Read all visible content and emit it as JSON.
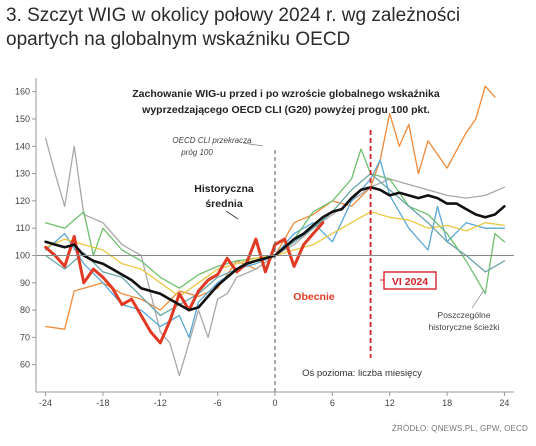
{
  "heading": "3. Szczyt WIG w okolicy połowy 2024 r. wg zależności opartych na globalnym wskaźniku OECD",
  "source": "ŹRÓDŁO: QNEWS.PL, GPW, OECD",
  "chart_data": {
    "type": "line",
    "title": "Zachowanie WIG-u przed i po wzroście globalnego wskaźnika wyprzedzającego OECD CLI (G20) powyżej progu 100 pkt.",
    "xlabel": "Oś pozioma: liczba miesięcy",
    "ylabel": "",
    "xlim": [
      -25,
      25
    ],
    "ylim": [
      50,
      165
    ],
    "xticks": [
      -24,
      -18,
      -12,
      -6,
      0,
      6,
      12,
      18,
      24
    ],
    "yticks": [
      60,
      70,
      80,
      90,
      100,
      110,
      120,
      130,
      140,
      150,
      160
    ],
    "grid": false,
    "annotations": {
      "threshold_x": 0,
      "threshold_label": [
        "OECD CLI przekracza",
        "próg 100"
      ],
      "peak_x": 10,
      "peak_label": "VI 2024",
      "hist_label": [
        "Historyczna",
        "średnia"
      ],
      "current_label": "Obecnie",
      "paths_label": [
        "Poszczególne",
        "historyczne ścieżki"
      ]
    },
    "colors": {
      "average": "#111111",
      "current": "#e03a24",
      "peak": "#d4232b",
      "threshold": "#555555",
      "axis": "#999999",
      "reference": "#888888"
    },
    "series": [
      {
        "color": "#f08a3a",
        "values": [
          [
            -24,
            74
          ],
          [
            -22,
            73
          ],
          [
            -21,
            87
          ],
          [
            -20,
            88
          ],
          [
            -18,
            90
          ],
          [
            -16,
            86
          ],
          [
            -14,
            84
          ],
          [
            -12,
            80
          ],
          [
            -10,
            87
          ],
          [
            -8,
            85
          ],
          [
            -6,
            88
          ],
          [
            -4,
            98
          ],
          [
            -2,
            95
          ],
          [
            0,
            100
          ],
          [
            2,
            112
          ],
          [
            4,
            115
          ],
          [
            6,
            120
          ],
          [
            8,
            118
          ],
          [
            10,
            125
          ],
          [
            11,
            135
          ],
          [
            12,
            152
          ],
          [
            13,
            140
          ],
          [
            14,
            148
          ],
          [
            15,
            130
          ],
          [
            16,
            142
          ],
          [
            18,
            132
          ],
          [
            20,
            145
          ],
          [
            21,
            150
          ],
          [
            22,
            162
          ],
          [
            23,
            158
          ]
        ]
      },
      {
        "color": "#a8a8a8",
        "values": [
          [
            -24,
            143
          ],
          [
            -23,
            130
          ],
          [
            -22,
            118
          ],
          [
            -21,
            140
          ],
          [
            -20,
            115
          ],
          [
            -18,
            112
          ],
          [
            -16,
            104
          ],
          [
            -14,
            100
          ],
          [
            -12,
            72
          ],
          [
            -11,
            68
          ],
          [
            -10,
            56
          ],
          [
            -8,
            80
          ],
          [
            -7,
            70
          ],
          [
            -6,
            84
          ],
          [
            -5,
            86
          ],
          [
            -4,
            92
          ],
          [
            -2,
            95
          ],
          [
            0,
            100
          ],
          [
            2,
            104
          ],
          [
            4,
            110
          ],
          [
            6,
            115
          ],
          [
            8,
            120
          ],
          [
            10,
            125
          ],
          [
            12,
            128
          ],
          [
            14,
            126
          ],
          [
            16,
            124
          ],
          [
            18,
            122
          ],
          [
            20,
            121
          ],
          [
            22,
            122
          ],
          [
            24,
            125
          ]
        ]
      },
      {
        "color": "#5aa8d8",
        "values": [
          [
            -24,
            102
          ],
          [
            -22,
            108
          ],
          [
            -20,
            97
          ],
          [
            -18,
            90
          ],
          [
            -16,
            82
          ],
          [
            -14,
            80
          ],
          [
            -12,
            74
          ],
          [
            -10,
            78
          ],
          [
            -9,
            70
          ],
          [
            -8,
            83
          ],
          [
            -6,
            90
          ],
          [
            -4,
            95
          ],
          [
            -2,
            97
          ],
          [
            0,
            100
          ],
          [
            2,
            108
          ],
          [
            4,
            112
          ],
          [
            6,
            105
          ],
          [
            8,
            120
          ],
          [
            10,
            128
          ],
          [
            11,
            135
          ],
          [
            12,
            122
          ],
          [
            14,
            110
          ],
          [
            16,
            102
          ],
          [
            17,
            118
          ],
          [
            18,
            105
          ],
          [
            20,
            112
          ],
          [
            22,
            110
          ],
          [
            24,
            110
          ]
        ]
      },
      {
        "color": "#6fbf6f",
        "values": [
          [
            -24,
            112
          ],
          [
            -22,
            110
          ],
          [
            -20,
            116
          ],
          [
            -19,
            100
          ],
          [
            -18,
            110
          ],
          [
            -16,
            102
          ],
          [
            -14,
            98
          ],
          [
            -12,
            92
          ],
          [
            -10,
            88
          ],
          [
            -8,
            93
          ],
          [
            -6,
            96
          ],
          [
            -4,
            98
          ],
          [
            -2,
            99
          ],
          [
            0,
            100
          ],
          [
            2,
            106
          ],
          [
            4,
            116
          ],
          [
            6,
            120
          ],
          [
            8,
            128
          ],
          [
            9,
            139
          ],
          [
            10,
            130
          ],
          [
            12,
            128
          ],
          [
            14,
            118
          ],
          [
            16,
            115
          ],
          [
            18,
            108
          ],
          [
            20,
            98
          ],
          [
            22,
            86
          ],
          [
            23,
            108
          ],
          [
            24,
            105
          ]
        ]
      },
      {
        "color": "#e9c843",
        "values": [
          [
            -24,
            103
          ],
          [
            -22,
            106
          ],
          [
            -20,
            104
          ],
          [
            -18,
            102
          ],
          [
            -16,
            97
          ],
          [
            -14,
            95
          ],
          [
            -12,
            90
          ],
          [
            -10,
            85
          ],
          [
            -8,
            90
          ],
          [
            -6,
            95
          ],
          [
            -4,
            97
          ],
          [
            -2,
            99
          ],
          [
            0,
            100
          ],
          [
            2,
            102
          ],
          [
            4,
            104
          ],
          [
            6,
            108
          ],
          [
            8,
            112
          ],
          [
            10,
            116
          ],
          [
            12,
            114
          ],
          [
            14,
            113
          ],
          [
            16,
            110
          ],
          [
            18,
            111
          ],
          [
            20,
            109
          ],
          [
            22,
            112
          ],
          [
            24,
            111
          ]
        ]
      },
      {
        "color": "#6aa6a8",
        "values": [
          [
            -24,
            100
          ],
          [
            -22,
            95
          ],
          [
            -20,
            101
          ],
          [
            -18,
            94
          ],
          [
            -16,
            92
          ],
          [
            -14,
            85
          ],
          [
            -12,
            78
          ],
          [
            -10,
            82
          ],
          [
            -8,
            86
          ],
          [
            -6,
            92
          ],
          [
            -4,
            95
          ],
          [
            -2,
            98
          ],
          [
            0,
            100
          ],
          [
            2,
            105
          ],
          [
            4,
            110
          ],
          [
            6,
            116
          ],
          [
            8,
            124
          ],
          [
            10,
            130
          ],
          [
            12,
            124
          ],
          [
            14,
            118
          ],
          [
            16,
            112
          ],
          [
            18,
            105
          ],
          [
            20,
            100
          ],
          [
            22,
            94
          ],
          [
            24,
            98
          ]
        ]
      },
      {
        "color": "#e03a24",
        "width": 3,
        "values": [
          [
            -24,
            103
          ],
          [
            -23,
            100
          ],
          [
            -22,
            96
          ],
          [
            -21,
            107
          ],
          [
            -20,
            90
          ],
          [
            -19,
            95
          ],
          [
            -18,
            92
          ],
          [
            -17,
            88
          ],
          [
            -16,
            82
          ],
          [
            -15,
            84
          ],
          [
            -14,
            78
          ],
          [
            -13,
            72
          ],
          [
            -12,
            68
          ],
          [
            -11,
            76
          ],
          [
            -10,
            86
          ],
          [
            -9,
            80
          ],
          [
            -8,
            87
          ],
          [
            -7,
            91
          ],
          [
            -6,
            93
          ],
          [
            -5,
            99
          ],
          [
            -4,
            94
          ],
          [
            -3,
            97
          ],
          [
            -2,
            106
          ],
          [
            -1,
            94
          ],
          [
            0,
            104
          ],
          [
            1,
            106
          ],
          [
            2,
            96
          ],
          [
            3,
            104
          ],
          [
            4,
            108
          ],
          [
            5,
            112
          ]
        ]
      },
      {
        "color": "#111111",
        "width": 2.6,
        "values": [
          [
            -24,
            105
          ],
          [
            -23,
            104
          ],
          [
            -22,
            103
          ],
          [
            -21,
            104
          ],
          [
            -20,
            100
          ],
          [
            -19,
            98
          ],
          [
            -18,
            97
          ],
          [
            -17,
            95
          ],
          [
            -16,
            93
          ],
          [
            -15,
            91
          ],
          [
            -14,
            88
          ],
          [
            -13,
            87
          ],
          [
            -12,
            86
          ],
          [
            -11,
            84
          ],
          [
            -10,
            82
          ],
          [
            -9,
            80
          ],
          [
            -8,
            81
          ],
          [
            -7,
            85
          ],
          [
            -6,
            89
          ],
          [
            -5,
            92
          ],
          [
            -4,
            95
          ],
          [
            -3,
            97
          ],
          [
            -2,
            98
          ],
          [
            -1,
            99
          ],
          [
            0,
            100
          ],
          [
            1,
            103
          ],
          [
            2,
            106
          ],
          [
            3,
            108
          ],
          [
            4,
            111
          ],
          [
            5,
            114
          ],
          [
            6,
            116
          ],
          [
            7,
            117
          ],
          [
            8,
            121
          ],
          [
            9,
            124
          ],
          [
            10,
            125
          ],
          [
            11,
            124
          ],
          [
            12,
            122
          ],
          [
            13,
            123
          ],
          [
            14,
            122
          ],
          [
            15,
            121
          ],
          [
            16,
            122
          ],
          [
            17,
            121
          ],
          [
            18,
            119
          ],
          [
            19,
            119
          ],
          [
            20,
            117
          ],
          [
            21,
            115
          ],
          [
            22,
            114
          ],
          [
            23,
            115
          ],
          [
            24,
            118
          ]
        ]
      }
    ]
  }
}
